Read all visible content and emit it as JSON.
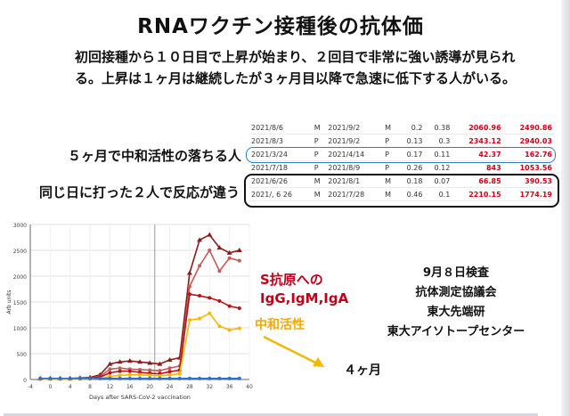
{
  "slide": {
    "title": "RNAワクチン接種後の抗体価",
    "intro_line1": "初回接種から１０日目で上昇が始まり、２回目で非常に強い誘導が見られ",
    "intro_line2": "る。上昇は１ヶ月は継続したが３ヶ月目以降で急速に低下する人がいる。",
    "note_five_months": "５ヶ月で中和活性の落ちる人",
    "note_same_day": "同じ日に打った２人で反応が違う",
    "chart_label_antibody_l1": "S抗原への",
    "chart_label_antibody_l2": "IgG,IgM,IgA",
    "chart_label_neutralizing": "中和活性",
    "arrow_label": "４ヶ月",
    "test_info": [
      "9月８日検査",
      "抗体測定協議会",
      "東大先端研",
      "東大アイソトープセンター"
    ]
  },
  "table": {
    "rows": [
      {
        "date1": "2021/8/6",
        "s1": "M",
        "date2": "2021/9/2",
        "s2": "M",
        "v1": "0.2",
        "v2": "0.38",
        "v3": "2060.96",
        "v4": "2490.86"
      },
      {
        "date1": "2021/8/3",
        "s1": "P",
        "date2": "2021/9/2",
        "s2": "P",
        "v1": "0.13",
        "v2": "0.3",
        "v3": "2343.12",
        "v4": "2940.03"
      },
      {
        "date1": "2021/3/24",
        "s1": "P",
        "date2": "2021/4/14",
        "s2": "P",
        "v1": "0.17",
        "v2": "0.11",
        "v3": "42.37",
        "v4": "162.76"
      },
      {
        "date1": "2021/7/18",
        "s1": "P",
        "date2": "2021/8/9",
        "s2": "P",
        "v1": "0.26",
        "v2": "0.12",
        "v3": "843",
        "v4": "1053.56"
      },
      {
        "date1": "2021/6/26",
        "s1": "M",
        "date2": "2021/8/1",
        "s2": "M",
        "v1": "0.18",
        "v2": "0.07",
        "v3": "66.85",
        "v4": "390.53"
      },
      {
        "date1": "2021/, 6 26",
        "s1": "M",
        "date2": "2021/7/28",
        "s2": "M",
        "v1": "0.46",
        "v2": "0.1",
        "v3": "2210.15",
        "v4": "1774.19"
      }
    ]
  },
  "chart_data": {
    "type": "line",
    "xlabel": "Days after SARS-CoV-2 vaccination",
    "ylabel": "Arb units",
    "xlim": [
      -4,
      40
    ],
    "ylim": [
      0,
      3000
    ],
    "x_ticks": [
      -4,
      0,
      4,
      8,
      12,
      16,
      20,
      24,
      28,
      32,
      36,
      40
    ],
    "y_ticks": [
      0,
      500,
      1000,
      1500,
      2000,
      2500,
      3000
    ],
    "marker_line_x": 21,
    "series": [
      {
        "color": "#8b1a1a",
        "x": [
          -2,
          0,
          2,
          4,
          6,
          8,
          10,
          12,
          14,
          16,
          18,
          20,
          22,
          24,
          26,
          28,
          30,
          32,
          34,
          36,
          38
        ],
        "y": [
          20,
          20,
          20,
          20,
          30,
          40,
          90,
          300,
          340,
          360,
          340,
          320,
          300,
          380,
          420,
          2060,
          2700,
          2800,
          2550,
          2450,
          2500
        ]
      },
      {
        "color": "#c45a5a",
        "x": [
          -2,
          0,
          2,
          4,
          6,
          8,
          10,
          12,
          14,
          16,
          18,
          20,
          22,
          24,
          26,
          28,
          30,
          32,
          34,
          36,
          38
        ],
        "y": [
          15,
          15,
          15,
          15,
          20,
          30,
          60,
          200,
          220,
          200,
          190,
          180,
          170,
          220,
          260,
          1800,
          2200,
          2500,
          2100,
          2350,
          2300
        ]
      },
      {
        "color": "#b51414",
        "x": [
          -2,
          0,
          2,
          4,
          6,
          8,
          10,
          12,
          14,
          16,
          18,
          20,
          22,
          24,
          26,
          28,
          30,
          32,
          34,
          36,
          38
        ],
        "y": [
          10,
          10,
          10,
          10,
          15,
          25,
          45,
          130,
          160,
          160,
          140,
          120,
          110,
          150,
          180,
          1650,
          1620,
          1580,
          1520,
          1420,
          1380
        ]
      },
      {
        "color": "#f5b800",
        "x": [
          -2,
          0,
          2,
          4,
          6,
          8,
          10,
          12,
          14,
          16,
          18,
          20,
          22,
          24,
          26,
          28,
          30,
          32,
          34,
          36,
          38
        ],
        "y": [
          5,
          5,
          5,
          5,
          8,
          10,
          20,
          60,
          80,
          90,
          90,
          80,
          70,
          90,
          110,
          1150,
          1180,
          1280,
          1030,
          960,
          990
        ]
      },
      {
        "color": "#2e6fd0",
        "x": [
          -2,
          0,
          2,
          4,
          6,
          8,
          10,
          12,
          14,
          16,
          18,
          20,
          22,
          24,
          26,
          28,
          30,
          32,
          34,
          36,
          38
        ],
        "y": [
          20,
          20,
          20,
          20,
          20,
          20,
          20,
          20,
          20,
          20,
          20,
          20,
          20,
          20,
          20,
          20,
          20,
          20,
          20,
          20,
          20
        ]
      }
    ]
  },
  "colors": {
    "accent_red": "#c0001a",
    "accent_yellow": "#f5b800",
    "box_blue": "#2b7fc2",
    "table_red": "#d0021b"
  }
}
